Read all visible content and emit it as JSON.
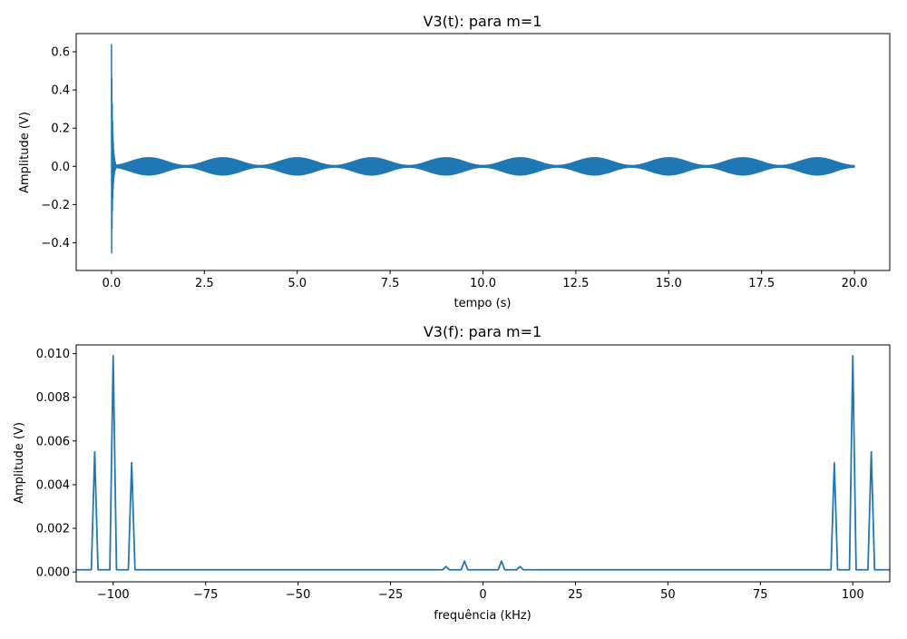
{
  "chart_data": [
    {
      "type": "line",
      "title": "V3(t): para m=1",
      "xlabel": "tempo (s)",
      "ylabel": "Amplitude (V)",
      "xlim": [
        -0.95,
        20.95
      ],
      "ylim": [
        -0.545,
        0.695
      ],
      "xticks": [
        0.0,
        2.5,
        5.0,
        7.5,
        10.0,
        12.5,
        15.0,
        17.5,
        20.0
      ],
      "xtick_labels": [
        "0.0",
        "2.5",
        "5.0",
        "7.5",
        "10.0",
        "12.5",
        "15.0",
        "17.5",
        "20.0"
      ],
      "yticks": [
        -0.4,
        -0.2,
        0.0,
        0.2,
        0.4,
        0.6
      ],
      "ytick_labels": [
        "−0.4",
        "−0.2",
        "0.0",
        "0.2",
        "0.4",
        "0.6"
      ],
      "grid": false,
      "color": "#1f77b4",
      "series": [
        {
          "signal": "modulated carrier, envelope period 2 s",
          "x_range": [
            0,
            20
          ],
          "envelope_peak": 0.045,
          "envelope_min": 0.004,
          "envelope_period_s": 2.0,
          "initial_transient": {
            "max": 0.64,
            "min": -0.535,
            "duration_s": 0.12
          }
        }
      ]
    },
    {
      "type": "line",
      "title": "V3(f): para m=1",
      "xlabel": "frequência (kHz)",
      "ylabel": "Amplitude (V)",
      "xlim": [
        -110,
        110
      ],
      "ylim": [
        -0.00045,
        0.0104
      ],
      "xticks": [
        -100,
        -75,
        -50,
        -25,
        0,
        25,
        50,
        75,
        100
      ],
      "xtick_labels": [
        "−100",
        "−75",
        "−50",
        "−25",
        "0",
        "25",
        "50",
        "75",
        "100"
      ],
      "yticks": [
        0.0,
        0.002,
        0.004,
        0.006,
        0.008,
        0.01
      ],
      "ytick_labels": [
        "0.000",
        "0.002",
        "0.004",
        "0.006",
        "0.008",
        "0.010"
      ],
      "grid": false,
      "color": "#1f77b4",
      "series": [
        {
          "baseline": 0.0001,
          "peaks": [
            {
              "x": -105,
              "y": 0.0055
            },
            {
              "x": -100,
              "y": 0.0099
            },
            {
              "x": -95,
              "y": 0.005
            },
            {
              "x": -10,
              "y": 0.00025
            },
            {
              "x": -5,
              "y": 0.0005
            },
            {
              "x": 5,
              "y": 0.0005
            },
            {
              "x": 10,
              "y": 0.00025
            },
            {
              "x": 95,
              "y": 0.005
            },
            {
              "x": 100,
              "y": 0.0099
            },
            {
              "x": 105,
              "y": 0.0055
            }
          ]
        }
      ]
    }
  ]
}
